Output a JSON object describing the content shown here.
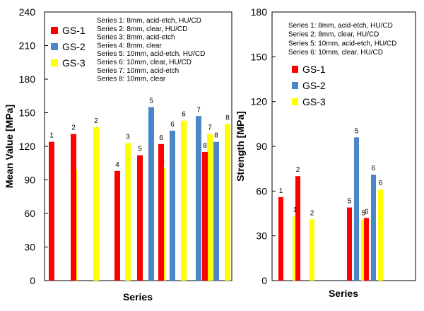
{
  "chart_data": [
    {
      "type": "bar",
      "xlabel": "Series",
      "ylabel": "Mean Value [MPa]",
      "ylim": [
        0,
        240
      ],
      "yticks": [
        0,
        30,
        60,
        90,
        120,
        150,
        180,
        210,
        240
      ],
      "grid": false,
      "legend_placement": "top-left",
      "notes": [
        "Series 1: 8mm, acid-etch, HU/CD",
        "Series 2: 8mm, clear, HU/CD",
        "Series 3: 8mm, acid-etch",
        "Series 4: 8mm, clear",
        "Series 5: 10mm, acid-etch, HU/CD",
        "Series 6: 10mm, clear, HU/CD",
        "Series 7: 10mm, acid-etch",
        "Series 8: 10mm, clear"
      ],
      "categories": [
        "1",
        "2",
        "3",
        "4",
        "5",
        "6",
        "7",
        "8"
      ],
      "series": [
        {
          "name": "GS-1",
          "color": "#ff0000",
          "values": [
            124,
            131,
            null,
            98,
            112,
            122,
            null,
            115
          ]
        },
        {
          "name": "GS-2",
          "color": "#4a86c8",
          "values": [
            null,
            null,
            null,
            null,
            155,
            134,
            147,
            124
          ]
        },
        {
          "name": "GS-3",
          "color": "#ffff00",
          "values": [
            99,
            137,
            123,
            102,
            101,
            143,
            131,
            140
          ]
        }
      ]
    },
    {
      "type": "bar",
      "xlabel": "Series",
      "ylabel": "Strength [MPa]",
      "ylim": [
        0,
        180
      ],
      "yticks": [
        0,
        30,
        60,
        90,
        120,
        150,
        180
      ],
      "grid": false,
      "legend_placement": "left",
      "notes": [
        "Series 1: 8mm, acid-etch, HU/CD",
        "Series 2: 8mm, clear, HU/CD",
        "Series 5: 10mm, acid-etch, HU/CD",
        "Series 6: 10mm, clear, HU/CD"
      ],
      "categories": [
        "1",
        "2",
        "5",
        "6"
      ],
      "series": [
        {
          "name": "GS-1",
          "color": "#ff0000",
          "values": [
            56,
            70,
            49,
            42
          ]
        },
        {
          "name": "GS-2",
          "color": "#4a86c8",
          "values": [
            null,
            null,
            96,
            71
          ]
        },
        {
          "name": "GS-3",
          "color": "#ffff00",
          "values": [
            43,
            41,
            41,
            61
          ]
        }
      ]
    }
  ]
}
